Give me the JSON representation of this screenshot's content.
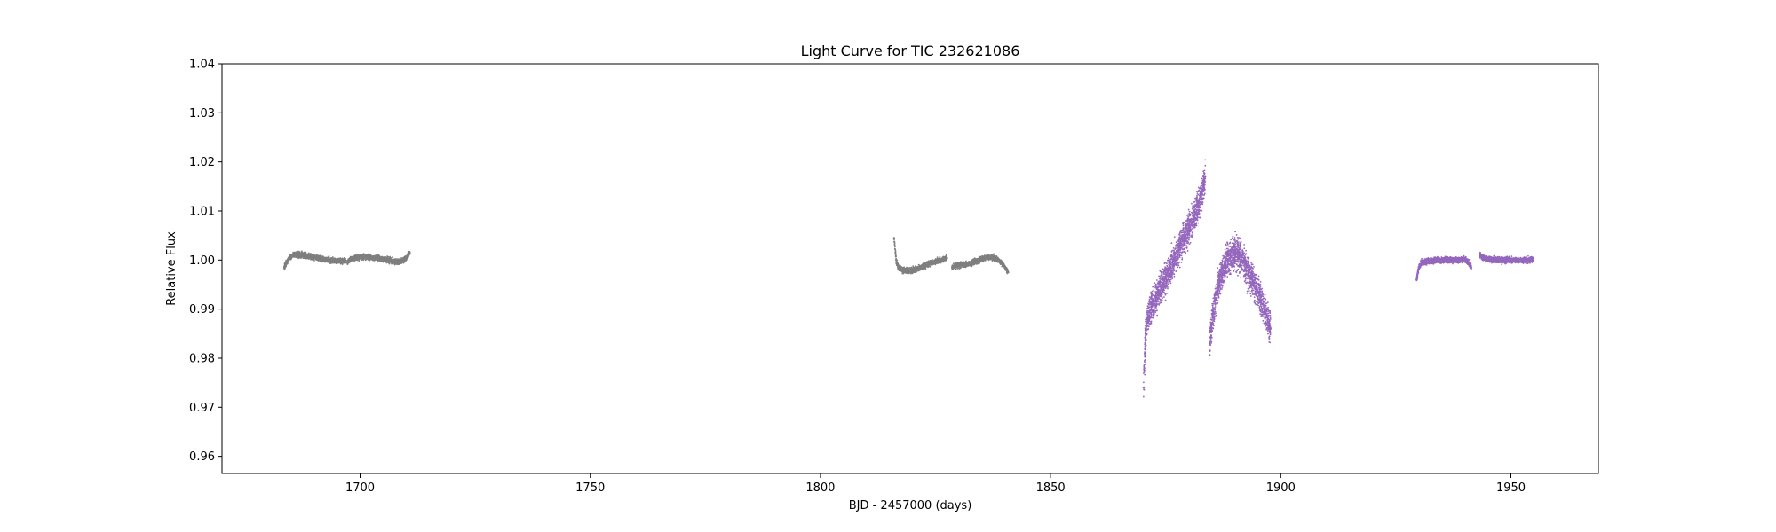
{
  "chart_data": {
    "type": "scatter",
    "title": "Light Curve for TIC 232621086",
    "xlabel": "BJD - 2457000 (days)",
    "ylabel": "Relative Flux",
    "xlim": [
      1670,
      1969
    ],
    "ylim": [
      0.9565,
      1.04
    ],
    "xticks": [
      1700,
      1750,
      1800,
      1850,
      1900,
      1950
    ],
    "yticks": [
      0.96,
      0.97,
      0.98,
      0.99,
      1.0,
      1.01,
      1.02,
      1.03,
      1.04
    ],
    "ytick_labels": [
      "0.96",
      "0.97",
      "0.98",
      "0.99",
      "1.00",
      "1.01",
      "1.02",
      "1.03",
      "1.04"
    ],
    "grid": false,
    "series": [
      {
        "color": "#7f7f7f",
        "segments": [
          {
            "x_start": 1683.5,
            "x_end": 1696.9,
            "points": [
              [
                1683.5,
                0.9985
              ],
              [
                1684.5,
                1.0003
              ],
              [
                1685.5,
                1.001
              ],
              [
                1686.5,
                1.0011
              ],
              [
                1687.5,
                1.001
              ],
              [
                1688.5,
                1.0008
              ],
              [
                1689.5,
                1.0006
              ],
              [
                1690.5,
                1.0005
              ],
              [
                1691.5,
                1.0003
              ],
              [
                1692.5,
                1.0001
              ],
              [
                1693.5,
                1.0
              ],
              [
                1694.5,
                0.9999
              ],
              [
                1695.5,
                0.9999
              ],
              [
                1696.5,
                0.9998
              ]
            ]
          },
          {
            "x_start": 1697.2,
            "x_end": 1710.8,
            "points": [
              [
                1697.2,
                0.9996
              ],
              [
                1698.0,
                1.0002
              ],
              [
                1699.0,
                1.0004
              ],
              [
                1700.0,
                1.0006
              ],
              [
                1701.0,
                1.0007
              ],
              [
                1702.0,
                1.0006
              ],
              [
                1703.0,
                1.0005
              ],
              [
                1704.0,
                1.0004
              ],
              [
                1705.0,
                1.0002
              ],
              [
                1706.0,
                1.0
              ],
              [
                1707.0,
                0.9998
              ],
              [
                1708.0,
                0.9996
              ],
              [
                1709.0,
                0.9998
              ],
              [
                1710.0,
                1.0004
              ],
              [
                1710.8,
                1.0015
              ]
            ]
          },
          {
            "x_start": 1816.0,
            "x_end": 1827.5,
            "points": [
              [
                1816.0,
                1.0045
              ],
              [
                1816.5,
                0.9995
              ],
              [
                1817.0,
                0.9985
              ],
              [
                1818.0,
                0.9979
              ],
              [
                1819.0,
                0.9978
              ],
              [
                1820.0,
                0.9979
              ],
              [
                1821.0,
                0.9982
              ],
              [
                1822.0,
                0.9986
              ],
              [
                1823.0,
                0.999
              ],
              [
                1824.0,
                0.9994
              ],
              [
                1825.0,
                0.9997
              ],
              [
                1826.0,
                1.0
              ],
              [
                1827.0,
                1.0003
              ],
              [
                1827.5,
                1.0004
              ]
            ]
          },
          {
            "x_start": 1828.6,
            "x_end": 1840.8,
            "points": [
              [
                1828.6,
                0.9985
              ],
              [
                1829.5,
                0.9989
              ],
              [
                1830.5,
                0.999
              ],
              [
                1831.5,
                0.9991
              ],
              [
                1832.5,
                0.9993
              ],
              [
                1833.5,
                0.9996
              ],
              [
                1834.5,
                1.0
              ],
              [
                1835.5,
                1.0004
              ],
              [
                1836.5,
                1.0006
              ],
              [
                1837.5,
                1.0005
              ],
              [
                1838.5,
                1.0001
              ],
              [
                1839.5,
                0.9993
              ],
              [
                1840.3,
                0.9982
              ],
              [
                1840.8,
                0.9975
              ]
            ]
          }
        ]
      },
      {
        "color": "#9467bd",
        "segments": [
          {
            "x_start": 1870.2,
            "x_end": 1883.6,
            "points": [
              [
                1870.2,
                0.974
              ],
              [
                1870.6,
                0.984
              ],
              [
                1871.0,
                0.988
              ],
              [
                1872.0,
                0.9905
              ],
              [
                1873.0,
                0.9925
              ],
              [
                1874.0,
                0.9945
              ],
              [
                1875.0,
                0.9965
              ],
              [
                1876.0,
                0.9985
              ],
              [
                1877.0,
                1.0005
              ],
              [
                1878.0,
                1.0025
              ],
              [
                1879.0,
                1.0045
              ],
              [
                1880.0,
                1.0065
              ],
              [
                1881.0,
                1.0085
              ],
              [
                1882.0,
                1.011
              ],
              [
                1883.0,
                1.014
              ],
              [
                1883.6,
                1.017
              ]
            ]
          },
          {
            "x_start": 1884.6,
            "x_end": 1897.8,
            "points": [
              [
                1884.6,
                0.983
              ],
              [
                1885.0,
                0.987
              ],
              [
                1886.0,
                0.993
              ],
              [
                1887.0,
                0.997
              ],
              [
                1888.0,
                0.9995
              ],
              [
                1889.0,
                1.001
              ],
              [
                1890.0,
                1.0015
              ],
              [
                1891.0,
                1.001
              ],
              [
                1892.0,
                0.9995
              ],
              [
                1893.0,
                0.9975
              ],
              [
                1894.0,
                0.9955
              ],
              [
                1895.0,
                0.9935
              ],
              [
                1896.0,
                0.991
              ],
              [
                1897.0,
                0.9885
              ],
              [
                1897.8,
                0.986
              ]
            ]
          },
          {
            "x_start": 1929.5,
            "x_end": 1941.4,
            "points": [
              [
                1929.5,
                0.996
              ],
              [
                1930.0,
                0.9985
              ],
              [
                1930.6,
                0.9995
              ],
              [
                1932.0,
                0.9998
              ],
              [
                1934.0,
                0.9999
              ],
              [
                1936.0,
                1.0
              ],
              [
                1938.0,
                1.0
              ],
              [
                1940.0,
                1.0001
              ],
              [
                1940.8,
                0.9995
              ],
              [
                1941.4,
                0.9985
              ]
            ]
          },
          {
            "x_start": 1943.2,
            "x_end": 1954.9,
            "points": [
              [
                1943.2,
                1.001
              ],
              [
                1944.0,
                1.0004
              ],
              [
                1946.0,
                1.0001
              ],
              [
                1948.0,
                1.0
              ],
              [
                1950.0,
                1.0
              ],
              [
                1952.0,
                1.0
              ],
              [
                1954.0,
                1.0
              ],
              [
                1954.9,
                1.0001
              ]
            ]
          }
        ]
      }
    ]
  }
}
